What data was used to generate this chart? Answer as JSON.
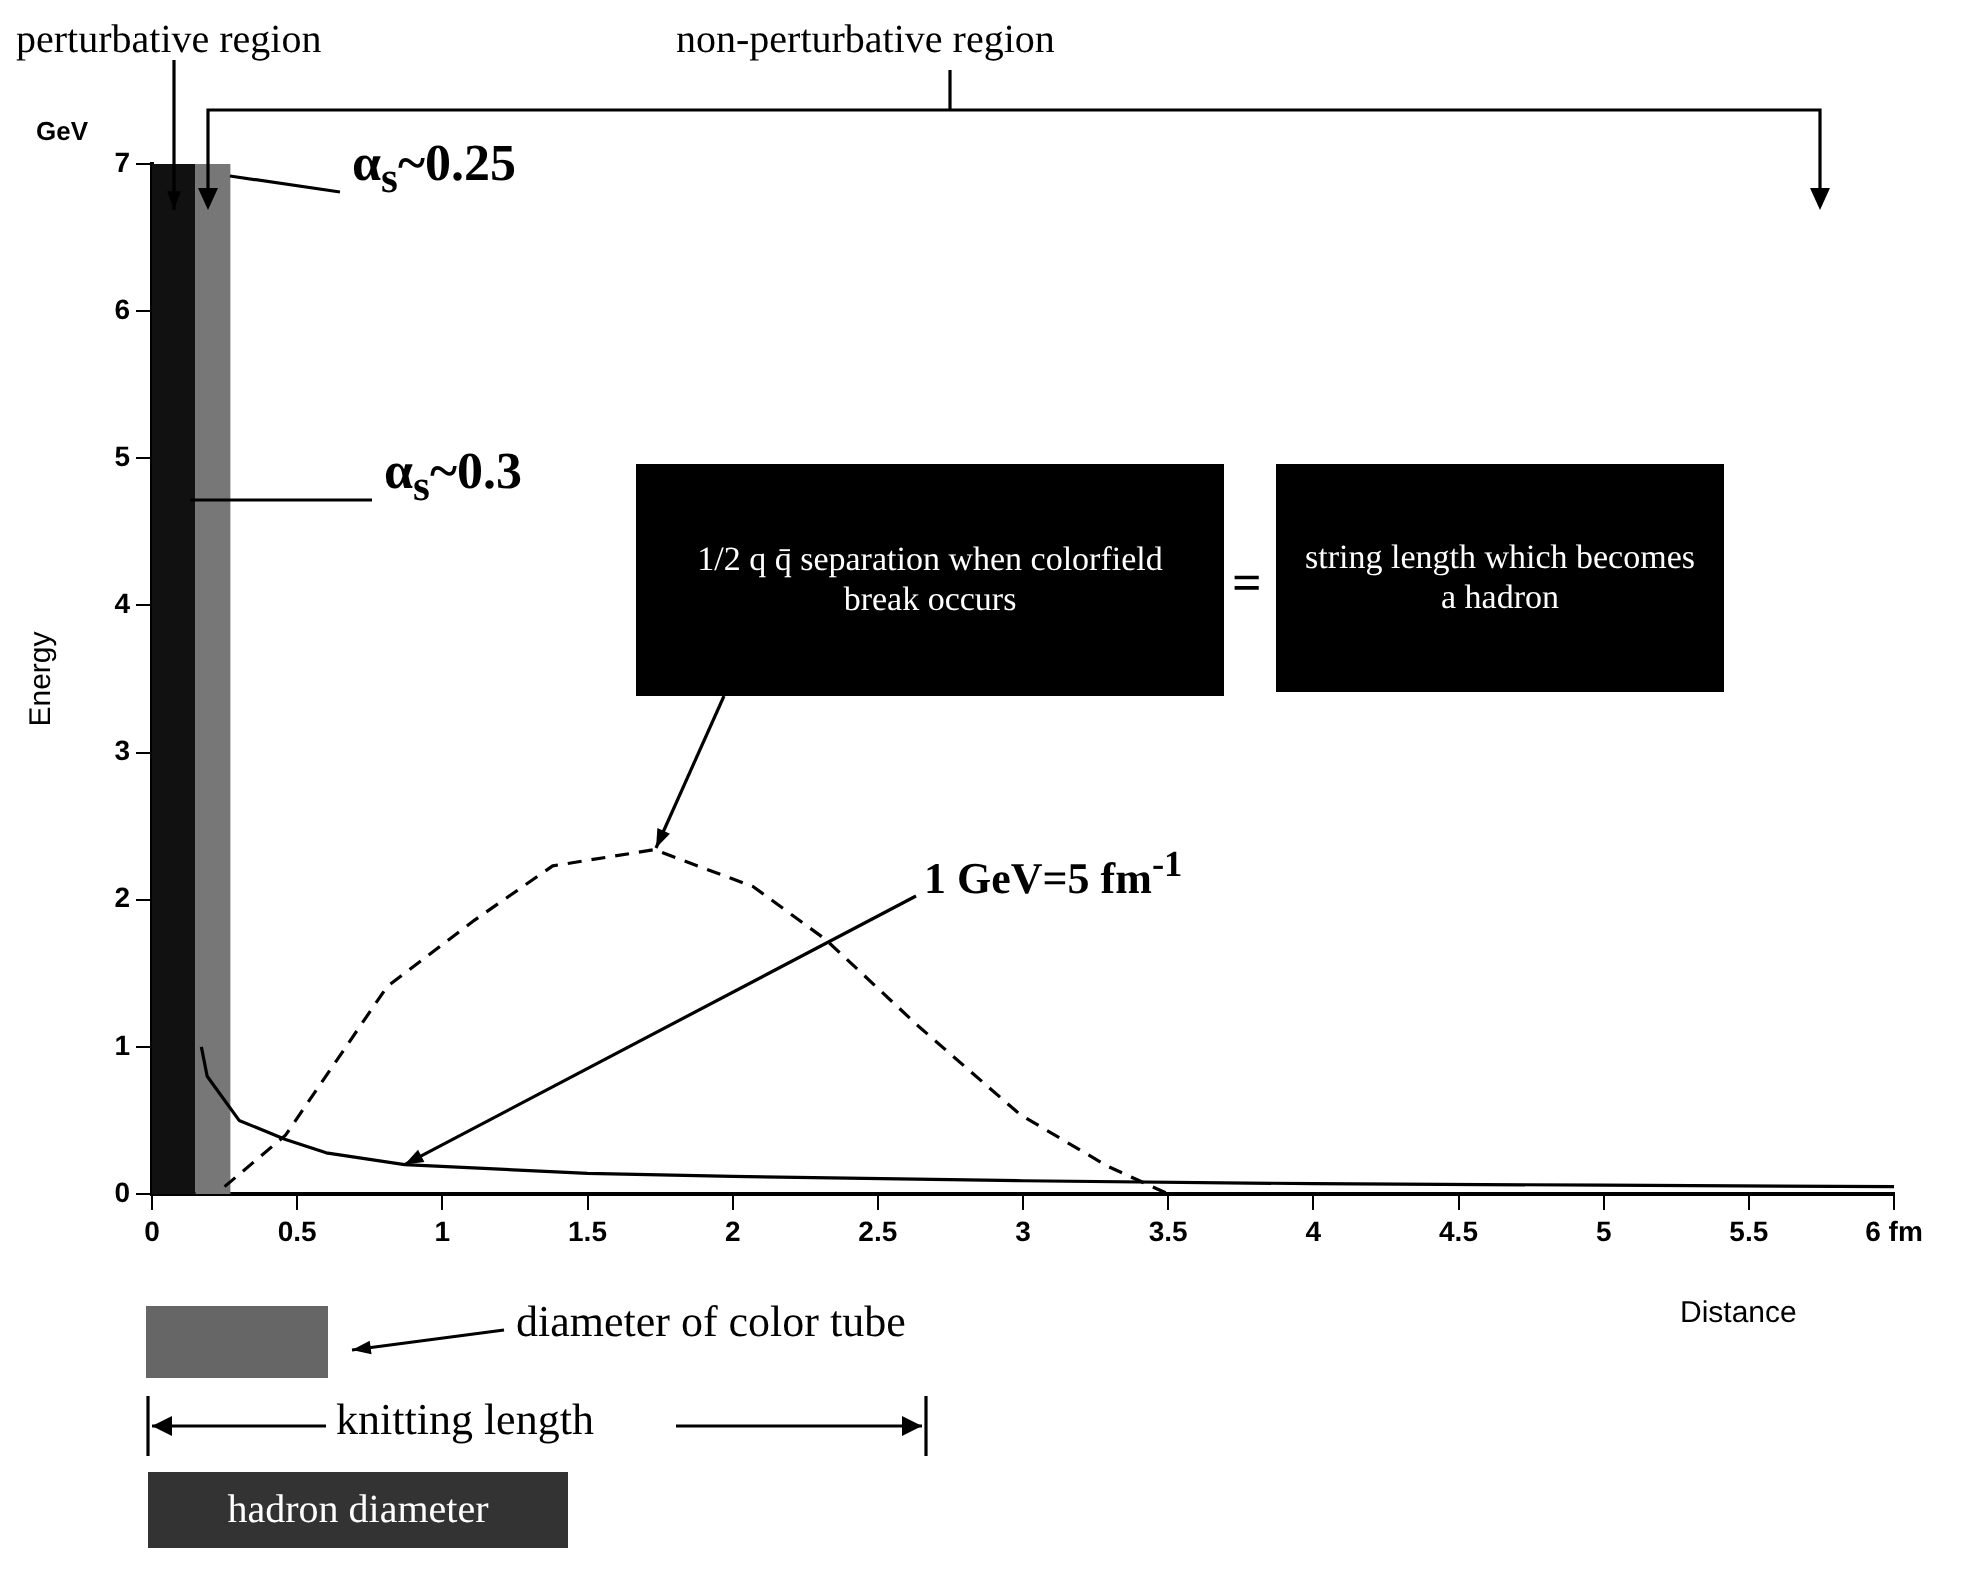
{
  "chart_data": {
    "type": "line",
    "ylabel": "Energy",
    "xlabel": "Distance",
    "xlim": [
      0,
      6
    ],
    "xticks": [
      0,
      0.5,
      1,
      1.5,
      2,
      2.5,
      3,
      3.5,
      4,
      4.5,
      5,
      5.5,
      {
        "value": 6,
        "label": "6 fm"
      }
    ],
    "ylim": [
      0,
      7
    ],
    "yticks": [
      0,
      1,
      2,
      3,
      4,
      5,
      6,
      7
    ],
    "grid": false,
    "legend": false,
    "marker": "none",
    "series": [
      {
        "type": "line",
        "color": "#000000",
        "line_style": "solid",
        "x": [
          0.17,
          0.19,
          0.3,
          0.46,
          0.6,
          0.87,
          1.5,
          2,
          3,
          4,
          5,
          6
        ],
        "values": [
          1.0,
          0.8,
          0.5,
          0.37,
          0.28,
          0.2,
          0.14,
          0.12,
          0.09,
          0.07,
          0.06,
          0.05
        ]
      },
      {
        "type": "line",
        "color": "#000000",
        "line_style": "dashed",
        "x": [
          0.25,
          0.46,
          0.81,
          1.11,
          1.38,
          1.73,
          2.07,
          2.32,
          2.64,
          2.99,
          3.29,
          3.5
        ],
        "values": [
          0.05,
          0.4,
          1.41,
          1.86,
          2.23,
          2.34,
          2.09,
          1.73,
          1.14,
          0.54,
          0.19,
          0
        ]
      }
    ],
    "bands": [
      {
        "axis": "x",
        "from": 0,
        "to": 0.15,
        "color": "#111111"
      },
      {
        "axis": "x",
        "from": 0.15,
        "to": 0.27,
        "color": "#777777"
      }
    ],
    "annotations": [
      "perturbative region",
      "non-perturbative region",
      "GeV",
      "α$_{s}$~0.25",
      "α$_{s}$~0.3",
      "1/2 q q̄ separation when colorfield break occurs",
      "=",
      "string length which becomes a hadron",
      {
        "text": "1 GeV=5 fm$^{-1}$",
        "x": 0.87,
        "y": 0.2
      },
      "diameter of color tube",
      "knitting length",
      "hadron diameter"
    ]
  }
}
